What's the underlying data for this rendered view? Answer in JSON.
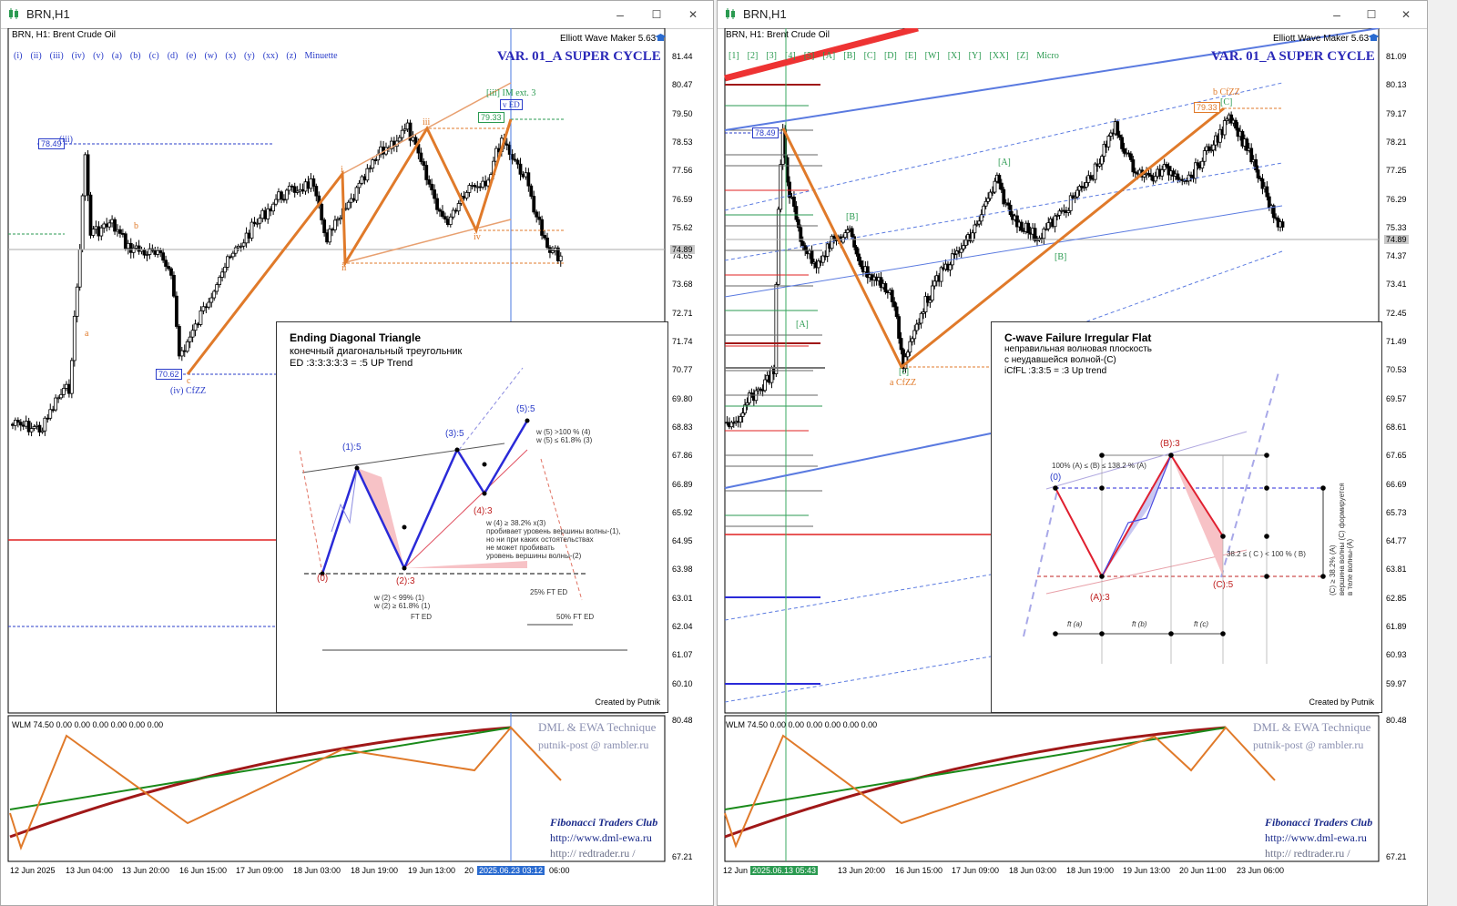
{
  "windows": [
    {
      "title": "BRN,H1",
      "symbol_line": "BRN, H1:  Brent Crude Oil",
      "brand": "Elliott Wave Maker 5.63",
      "wave_degrees": [
        "(i)",
        "(ii)",
        "(iii)",
        "(iv)",
        "(v)",
        "(a)",
        "(b)",
        "(c)",
        "(d)",
        "(e)",
        "(w)",
        "(x)",
        "(y)",
        "(xx)",
        "(z)",
        "Minuette"
      ],
      "variant": "VAR. 01_A SUPER CYCLE",
      "price_axis": [
        "81.44",
        "80.47",
        "79.50",
        "78.53",
        "77.56",
        "76.59",
        "75.62",
        "74.65",
        "73.68",
        "72.71",
        "71.74",
        "70.77",
        "69.80",
        "68.83",
        "67.86",
        "66.89",
        "65.92",
        "64.95",
        "63.98",
        "63.01",
        "62.04",
        "61.07",
        "60.10"
      ],
      "current_price": "74.89",
      "price_tags": {
        "p1": "78.49",
        "p2": "79.33",
        "p3": "70.62"
      },
      "wave_labels": [
        "(iii)",
        "a",
        "b",
        "c",
        "(iv) CfZZ",
        "i",
        "ii",
        "iii",
        "iv",
        "[iii] IM ext. 3",
        "v ED"
      ],
      "panel": {
        "title": "Ending Diagonal Triangle",
        "line1": "конечный диагональный треугольник",
        "line2": "ED :3:3:3:3:3 = :5 UP Trend",
        "credit": "Created by Putnik",
        "points": [
          "(0)",
          "(1):5",
          "(2):3",
          "(3):5",
          "(4):3",
          "(5):5"
        ],
        "notes": {
          "n1": "w (5) >100 % (4)",
          "n2": "w (5) ≤ 61.8% (3)",
          "n3": "w (4) ≥ 38.2% x(3)",
          "n4": "пробивает уровень вершины волны-(1),",
          "n5": "но ни при каких остоятельствах",
          "n6": "не может пробивать",
          "n7": "уровень вершины волны-(2)",
          "n8": "w (2) < 99% (1)",
          "n9": "w (2) ≥ 61.8% (1)",
          "n10": "25% FT ED",
          "n11": "FT ED",
          "n12": "50% FT ED"
        }
      },
      "indicator": {
        "label": "WLM 74.50 0.00 0.00 0.00 0.00 0.00 0.00",
        "axis_top": "80.48",
        "axis_bottom": "67.21",
        "dml": "DML & EWA Technique",
        "post": "putnik-post @ rambler.ru",
        "club": "Fibonacci    Traders    Club",
        "url1": "http://www.dml-ewa.ru",
        "url2": "http://  redtrader.ru  /"
      },
      "time_axis": [
        "12 Jun 2025",
        "13 Jun 04:00",
        "13 Jun 20:00",
        "16 Jun 15:00",
        "17 Jun 09:00",
        "18 Jun 03:00",
        "18 Jun 19:00",
        "19 Jun 13:00",
        "20",
        "2025.06.23 03:12",
        "06:00"
      ]
    },
    {
      "title": "BRN,H1",
      "symbol_line": "BRN, H1:  Brent Crude Oil",
      "brand": "Elliott Wave Maker 5.63",
      "wave_degrees": [
        "[1]",
        "[2]",
        "[3]",
        "[4]",
        "[5]",
        "[A]",
        "[B]",
        "[C]",
        "[D]",
        "[E]",
        "[W]",
        "[X]",
        "[Y]",
        "[XX]",
        "[Z]",
        "Micro"
      ],
      "variant": "VAR. 01_A SUPER CYCLE",
      "price_axis": [
        "81.09",
        "80.13",
        "79.17",
        "78.21",
        "77.25",
        "76.29",
        "75.33",
        "74.37",
        "73.41",
        "72.45",
        "71.49",
        "70.53",
        "69.57",
        "68.61",
        "67.65",
        "66.69",
        "65.73",
        "64.77",
        "63.81",
        "62.85",
        "61.89",
        "60.93",
        "59.97"
      ],
      "current_price": "74.89",
      "price_tags": {
        "p1": "78.49",
        "p2": "79.33"
      },
      "wave_labels": [
        "[A]",
        "[B]",
        "[A]",
        "[B]",
        "[C]",
        "a CfZZ",
        "b CfZZ",
        "[c]",
        "[A]"
      ],
      "panel": {
        "title": "C-wave Failure Irregular Flat",
        "line1": "неправильная волновая плоскость",
        "line2": "с неудавшейся волной-(С)",
        "line3": "iCfFL :3:3:5 = :3 Up trend",
        "credit": "Created by Putnik",
        "points": [
          "(0)",
          "(A):3",
          "(B):3",
          "(C):5"
        ],
        "notes": {
          "n1": "100% (A) ≤ (B) ≤ 138.2 % (A)",
          "n2": "38.2 ≤ ( C ) < 100 % ( B)",
          "n3": "(C) ≥ 38.2% (A)",
          "n4": "вершина волны (С) формируется",
          "n5": "в теле волны-(А)",
          "n6": "ft (a)",
          "n7": "ft (b)",
          "n8": "ft (c)"
        }
      },
      "indicator": {
        "label": "WLM 74.50 0.00 0.00 0.00 0.00 0.00 0.00",
        "axis_top": "80.48",
        "axis_bottom": "67.21",
        "dml": "DML & EWA Technique",
        "post": "putnik-post @ rambler.ru",
        "club": "Fibonacci    Traders    Club",
        "url1": "http://www.dml-ewa.ru",
        "url2": "http://  redtrader.ru  /"
      },
      "time_axis": [
        "12 Jun",
        "2025.06.13 05:43",
        "13 Jun 20:00",
        "16 Jun 15:00",
        "17 Jun 09:00",
        "18 Jun 03:00",
        "18 Jun 19:00",
        "19 Jun 13:00",
        "20 Jun 11:00",
        "23 Jun 06:00"
      ]
    }
  ],
  "window_controls": {
    "minimize": "–",
    "maximize": "☐",
    "close": "✕"
  },
  "colors": {
    "orange": "#e07a2a",
    "blue_wave": "#2a3cc9",
    "red": "#e02020",
    "green": "#2a9a50",
    "dark_red": "#a01818"
  }
}
